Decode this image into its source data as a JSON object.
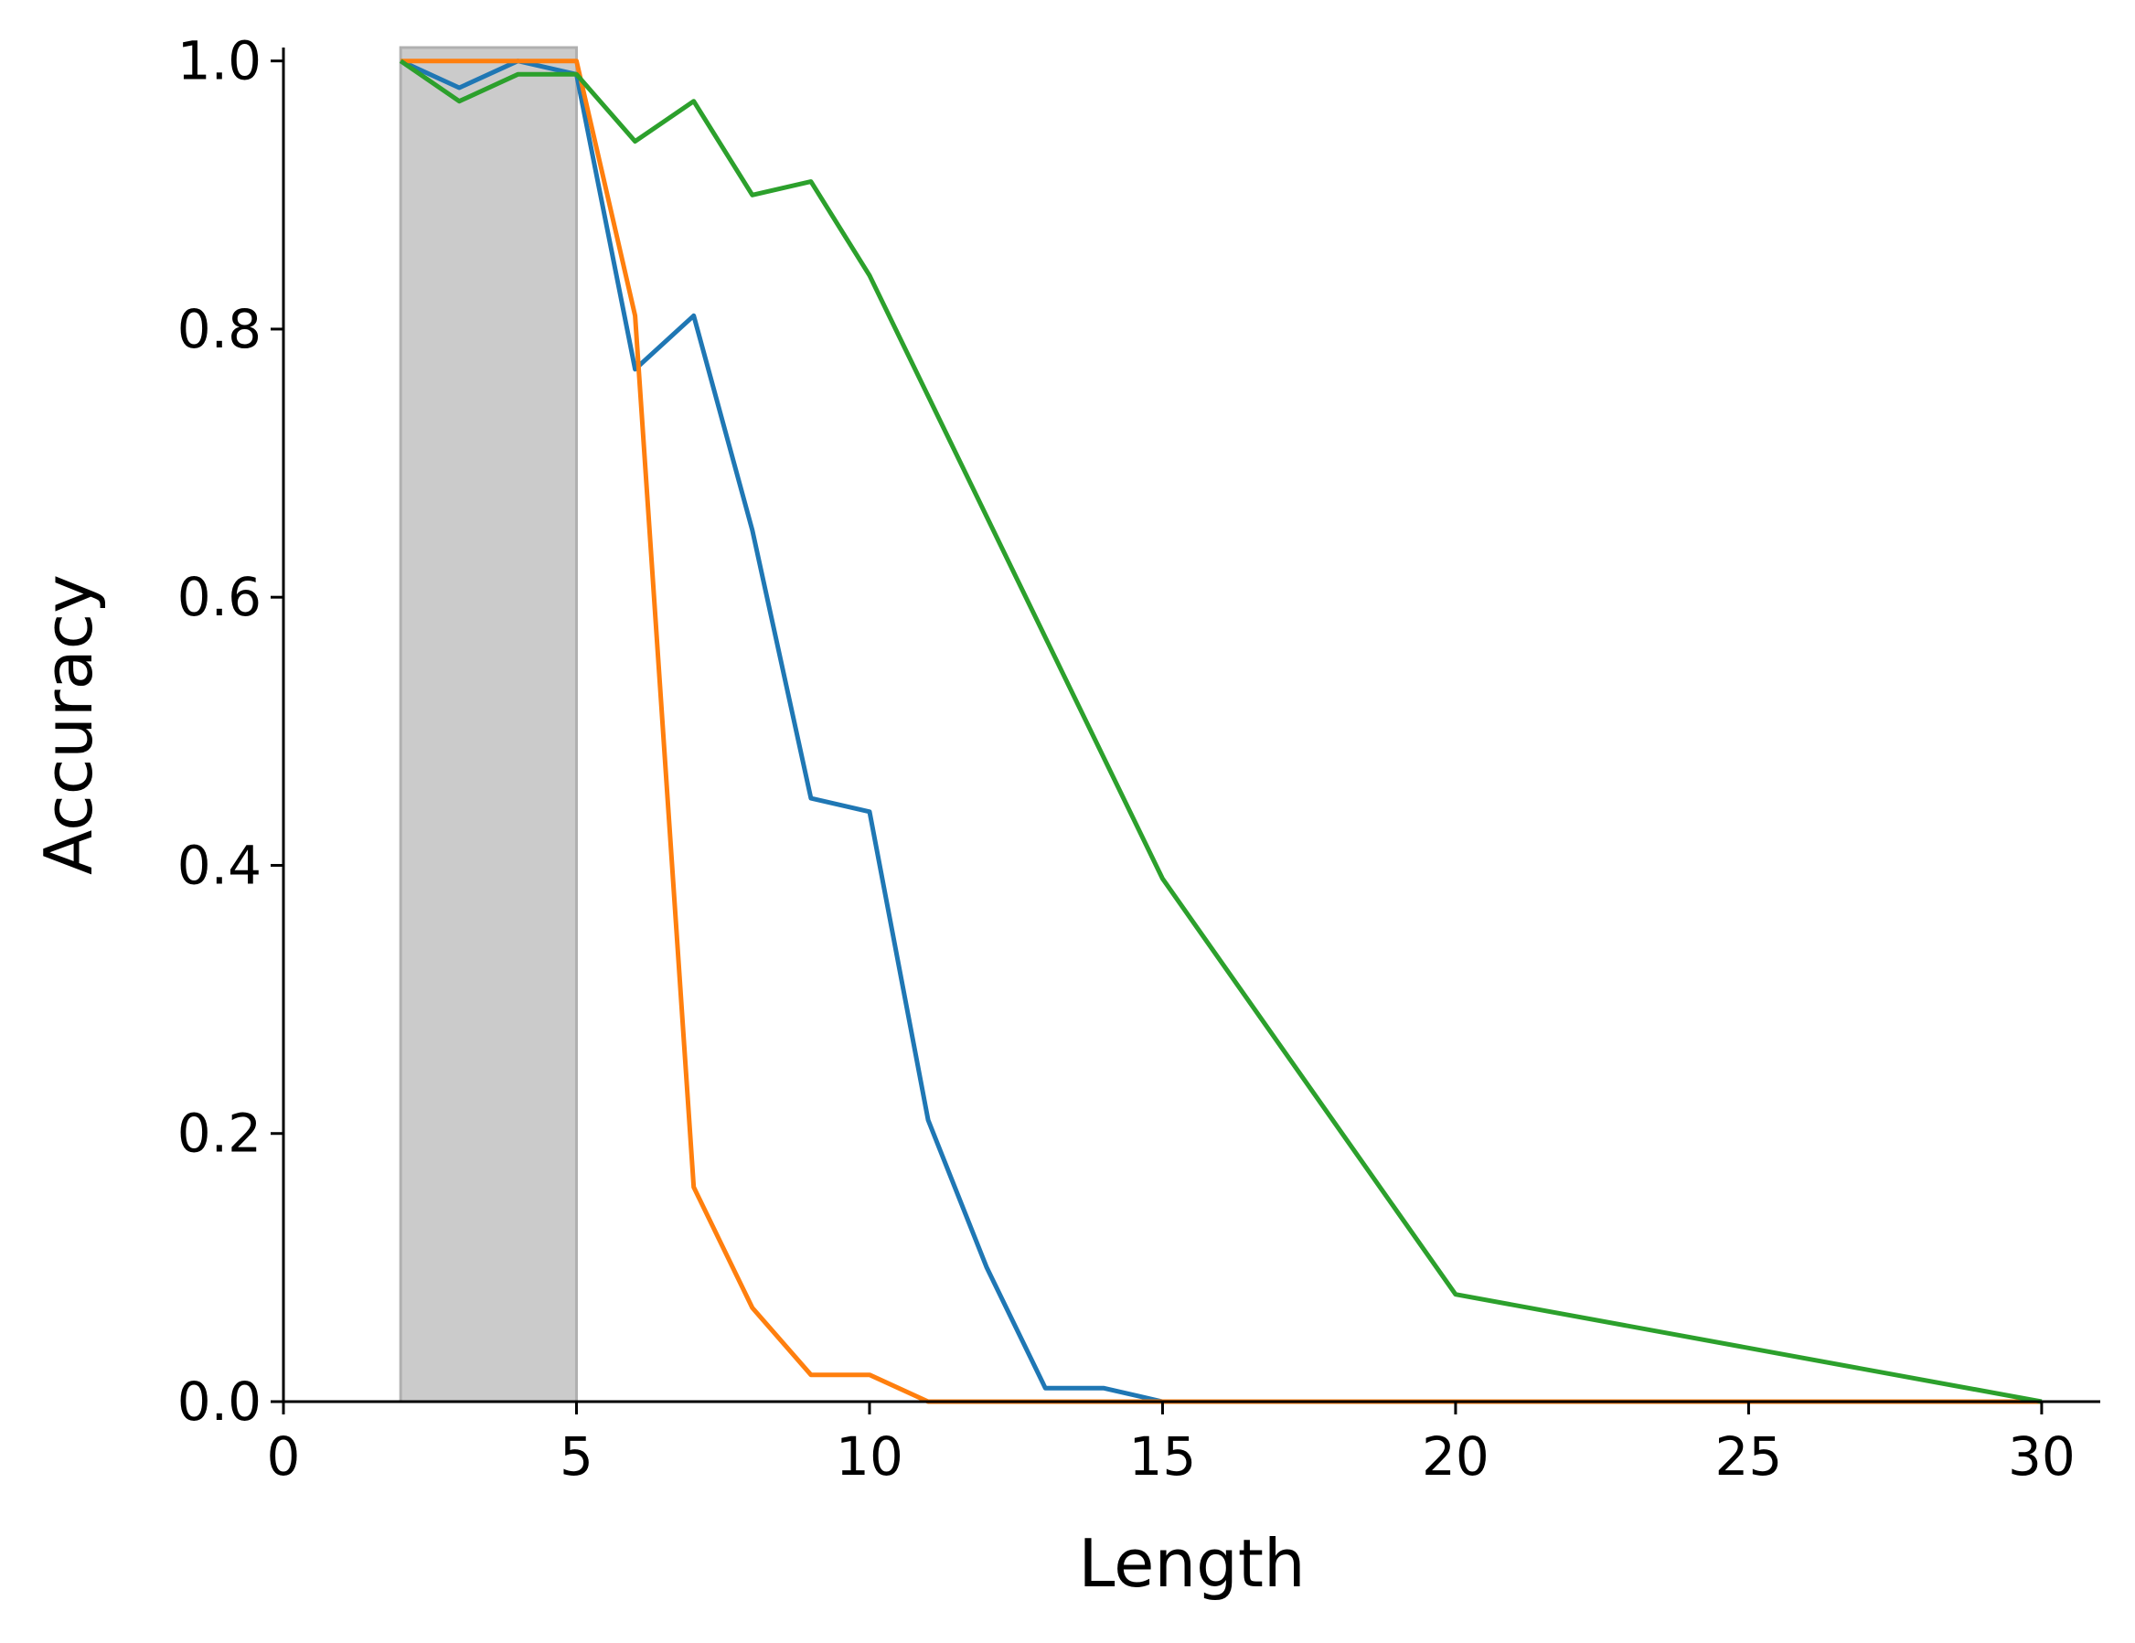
{
  "chart_data": {
    "type": "line",
    "title": "",
    "xlabel": "Length",
    "ylabel": "Accuracy",
    "xlim": [
      0,
      31
    ],
    "ylim": [
      0,
      1.01
    ],
    "xticks": [
      0,
      5,
      10,
      15,
      20,
      25,
      30
    ],
    "xtick_labels": [
      "0",
      "5",
      "10",
      "15",
      "20",
      "25",
      "30"
    ],
    "yticks": [
      0.0,
      0.2,
      0.4,
      0.6,
      0.8,
      1.0
    ],
    "ytick_labels": [
      "0.0",
      "0.2",
      "0.4",
      "0.6",
      "0.8",
      "1.0"
    ],
    "grid": false,
    "shaded_region": {
      "x_start": 2,
      "x_end": 5,
      "color": "#cbcbcb"
    },
    "series": [
      {
        "color": "#1f77b4",
        "x": [
          2,
          3,
          4,
          5,
          6,
          7,
          8,
          9,
          10,
          11,
          12,
          13,
          14,
          15,
          20,
          30
        ],
        "y": [
          1.0,
          0.98,
          1.0,
          0.99,
          0.77,
          0.81,
          0.65,
          0.45,
          0.44,
          0.21,
          0.1,
          0.01,
          0.01,
          0.0,
          0.0,
          0.0
        ]
      },
      {
        "color": "#ff7f0e",
        "x": [
          2,
          3,
          4,
          5,
          6,
          7,
          8,
          9,
          10,
          11,
          12,
          13,
          14,
          15,
          20,
          30
        ],
        "y": [
          1.0,
          1.0,
          1.0,
          1.0,
          0.81,
          0.16,
          0.07,
          0.02,
          0.02,
          0.0,
          0.0,
          0.0,
          0.0,
          0.0,
          0.0,
          0.0
        ]
      },
      {
        "color": "#2ca02c",
        "x": [
          2,
          3,
          4,
          5,
          6,
          7,
          8,
          9,
          10,
          15,
          20,
          30
        ],
        "y": [
          1.0,
          0.97,
          0.99,
          0.99,
          0.94,
          0.97,
          0.9,
          0.91,
          0.84,
          0.39,
          0.08,
          0.0
        ]
      }
    ]
  }
}
